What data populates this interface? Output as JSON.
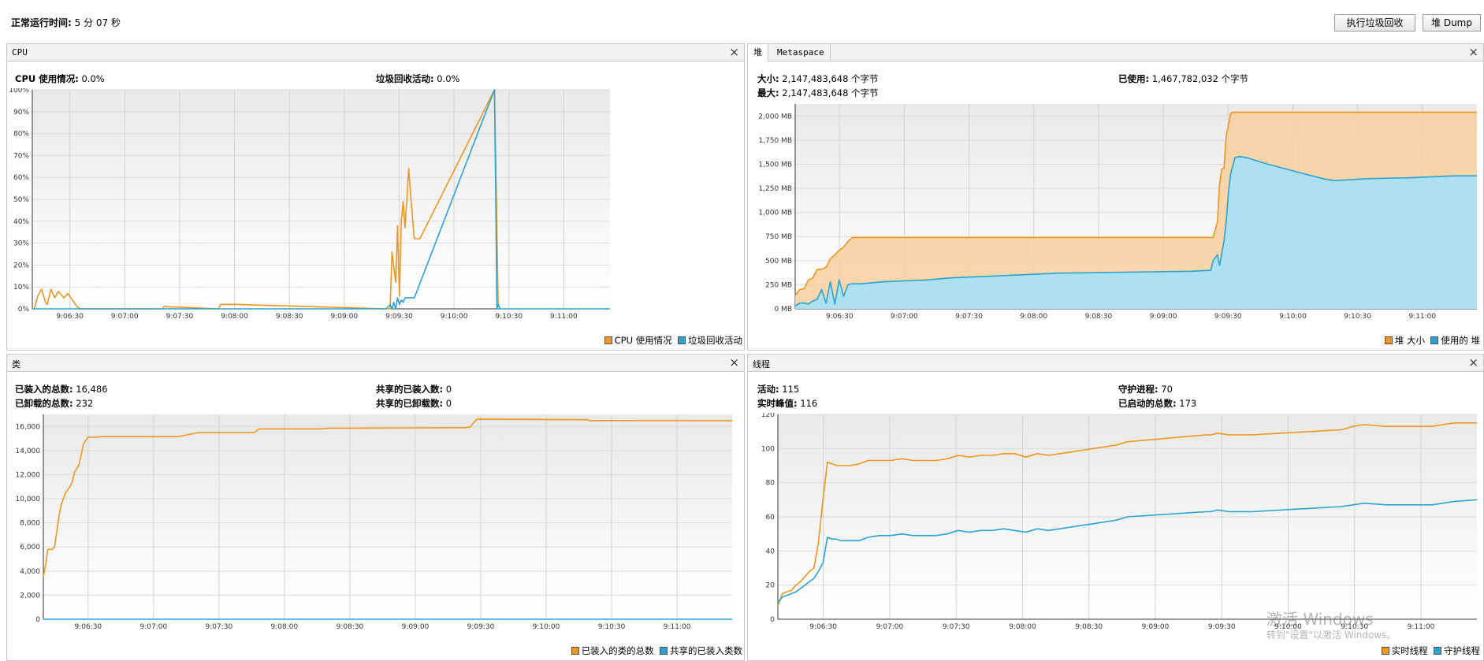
{
  "header": {
    "uptime_label": "正常运行时间:",
    "uptime_value": "5 分 07 秒",
    "gc_button": "执行垃圾回收",
    "dump_button": "堆 Dump"
  },
  "cpu": {
    "title": "CPU",
    "usage_label": "CPU 使用情况:",
    "usage_value": "0.0%",
    "gc_label": "垃圾回收活动:",
    "gc_value": "0.0%"
  },
  "heap": {
    "tab_heap": "堆",
    "tab_metaspace": "Metaspace",
    "size_label": "大小:",
    "size_value": "2,147,483,648 个字节",
    "max_label": "最大:",
    "max_value": "2,147,483,648 个字节",
    "used_label": "已使用:",
    "used_value": "1,467,782,032 个字节"
  },
  "classes": {
    "title": "类",
    "loaded_label": "已装入的总数:",
    "loaded_value": "16,486",
    "unloaded_label": "已卸载的总数:",
    "unloaded_value": "232",
    "shared_loaded_label": "共享的已装入数:",
    "shared_loaded_value": "0",
    "shared_unloaded_label": "共享的已卸载数:",
    "shared_unloaded_value": "0"
  },
  "threads": {
    "title": "线程",
    "live_label": "活动:",
    "live_value": "115",
    "daemon_label": "守护进程:",
    "daemon_value": "70",
    "peak_label": "实时峰值:",
    "peak_value": "116",
    "started_label": "已启动的总数:",
    "started_value": "173"
  },
  "watermark": {
    "line1": "激活 Windows",
    "line2": "转到\"设置\"以激活 Windows。"
  },
  "colors": {
    "orange": "#f0961e",
    "blue": "#2aa3d2",
    "grid": "#d9d9d9"
  },
  "chart_data": [
    {
      "id": "cpu",
      "type": "line",
      "x_ticks": [
        "9:06:30",
        "9:07:00",
        "9:07:30",
        "9:08:00",
        "9:08:30",
        "9:09:00",
        "9:09:30",
        "9:10:00",
        "9:10:30",
        "9:11:00"
      ],
      "y_ticks": [
        "0%",
        "10%",
        "20%",
        "30%",
        "40%",
        "50%",
        "60%",
        "70%",
        "80%",
        "90%",
        "100%"
      ],
      "ylim": [
        0,
        100
      ],
      "xlim": [
        0,
        310
      ],
      "series": [
        {
          "name": "CPU 使用情况",
          "color": "#f0961e",
          "x": [
            0,
            1,
            3,
            5,
            7,
            8,
            10,
            12,
            14,
            17,
            19,
            24,
            26,
            30,
            50,
            70,
            70.5,
            100,
            101,
            110,
            190,
            192,
            193,
            195,
            196,
            197,
            198,
            199,
            200,
            202,
            203,
            205,
            208,
            248,
            250,
            251
          ],
          "y": [
            0,
            0,
            6,
            9,
            3,
            2,
            9,
            5,
            8,
            5,
            7,
            1,
            0,
            0,
            0,
            0,
            1,
            0,
            2,
            2,
            0,
            0,
            26,
            12,
            38,
            6,
            40,
            49,
            37,
            64,
            52,
            32,
            32,
            100,
            2,
            0
          ]
        },
        {
          "name": "垃圾回收活动",
          "color": "#2aa3d2",
          "x": [
            0,
            190,
            192,
            193,
            194,
            195,
            196,
            197,
            198,
            199,
            200,
            202,
            205,
            248,
            248.7,
            249.3,
            250,
            251,
            310
          ],
          "y": [
            0,
            0,
            2,
            0,
            3,
            0,
            5,
            2,
            4,
            3,
            5,
            5,
            5,
            100,
            50,
            0,
            2,
            0,
            0
          ]
        }
      ]
    },
    {
      "id": "heap",
      "type": "area",
      "x_ticks": [
        "9:06:30",
        "9:07:00",
        "9:07:30",
        "9:08:00",
        "9:08:30",
        "9:09:00",
        "9:09:30",
        "9:10:00",
        "9:10:30",
        "9:11:00"
      ],
      "y_ticks": [
        "0 MB",
        "250 MB",
        "500 MB",
        "750 MB",
        "1,000 MB",
        "1,250 MB",
        "1,500 MB",
        "1,750 MB",
        "2,000 MB"
      ],
      "ylim": [
        0,
        2125
      ],
      "xlim": [
        0,
        310
      ],
      "series": [
        {
          "name": "堆 大小",
          "color": "#f0961e",
          "x": [
            0,
            2,
            4,
            6,
            8,
            10,
            12,
            14,
            16,
            18,
            20,
            22,
            24,
            26,
            28,
            30,
            32,
            34,
            36,
            38,
            40,
            50,
            190,
            192,
            193,
            194,
            195,
            196,
            197,
            198,
            199,
            200,
            205,
            300,
            310
          ],
          "y": [
            140,
            200,
            210,
            300,
            320,
            410,
            410,
            430,
            520,
            560,
            610,
            640,
            700,
            740,
            740,
            740,
            740,
            740,
            740,
            740,
            740,
            740,
            740,
            900,
            1300,
            1450,
            1460,
            1800,
            1900,
            2030,
            2040,
            2040,
            2040,
            2040,
            2040
          ]
        },
        {
          "name": "使用的 堆",
          "color": "#2aa3d2",
          "x": [
            0,
            2,
            4,
            6,
            8,
            10,
            12,
            14,
            16,
            18,
            20,
            22,
            24,
            26,
            28,
            30,
            40,
            50,
            60,
            70,
            80,
            90,
            100,
            120,
            150,
            180,
            189,
            190,
            192,
            193,
            195,
            196,
            197,
            198,
            200,
            202,
            205,
            215,
            240,
            245,
            260,
            280,
            300,
            310
          ],
          "y": [
            30,
            60,
            60,
            50,
            80,
            100,
            200,
            60,
            280,
            50,
            300,
            130,
            250,
            260,
            260,
            260,
            280,
            290,
            300,
            320,
            330,
            340,
            350,
            370,
            380,
            390,
            400,
            500,
            560,
            450,
            700,
            900,
            1200,
            1400,
            1570,
            1580,
            1570,
            1500,
            1350,
            1330,
            1350,
            1360,
            1380,
            1380
          ]
        }
      ]
    },
    {
      "id": "classes",
      "type": "line",
      "x_ticks": [
        "9:06:30",
        "9:07:00",
        "9:07:30",
        "9:08:00",
        "9:08:30",
        "9:09:00",
        "9:09:30",
        "9:10:00",
        "9:10:30",
        "9:11:00"
      ],
      "y_ticks": [
        "0",
        "2,000",
        "4,000",
        "6,000",
        "8,000",
        "10,000",
        "12,000",
        "14,000",
        "16,000"
      ],
      "ylim": [
        0,
        17000
      ],
      "xlim": [
        0,
        310
      ],
      "series": [
        {
          "name": "已装入的类的总数",
          "color": "#f0961e",
          "x": [
            0,
            1,
            2,
            4,
            5,
            6,
            7,
            8,
            10,
            12,
            13,
            14,
            16,
            17,
            18,
            20,
            22,
            24,
            26,
            30,
            60,
            62,
            70,
            95,
            97,
            125,
            128,
            190,
            192,
            195,
            245,
            246,
            247,
            310
          ],
          "y": [
            3500,
            4500,
            5800,
            5800,
            6000,
            7200,
            8500,
            9500,
            10500,
            11000,
            11400,
            12200,
            12800,
            13600,
            14500,
            15100,
            15100,
            15100,
            15150,
            15150,
            15150,
            15200,
            15500,
            15500,
            15800,
            15800,
            15850,
            15900,
            15950,
            16600,
            16560,
            16480,
            16490,
            16486
          ]
        },
        {
          "name": "共享的已装入类数",
          "color": "#2aa3d2",
          "x": [
            0,
            310
          ],
          "y": [
            0,
            0
          ]
        }
      ]
    },
    {
      "id": "threads",
      "type": "line",
      "x_ticks": [
        "9:06:30",
        "9:07:00",
        "9:07:30",
        "9:08:00",
        "9:08:30",
        "9:09:00",
        "9:09:30",
        "9:10:00",
        "9:10:30",
        "9:11:00"
      ],
      "y_ticks": [
        "0",
        "20",
        "40",
        "60",
        "80",
        "100",
        "120"
      ],
      "ylim": [
        0,
        120
      ],
      "xlim": [
        0,
        310
      ],
      "series": [
        {
          "name": "实时线程",
          "color": "#f0961e",
          "x": [
            0,
            2,
            4,
            6,
            8,
            10,
            12,
            14,
            16,
            18,
            20,
            22,
            24,
            26,
            28,
            32,
            36,
            40,
            45,
            50,
            55,
            60,
            70,
            75,
            80,
            85,
            90,
            95,
            100,
            105,
            110,
            115,
            120,
            125,
            130,
            135,
            140,
            145,
            150,
            155,
            190,
            192,
            195,
            200,
            210,
            250,
            255,
            260,
            270,
            280,
            290,
            295,
            300,
            310
          ],
          "y": [
            8,
            15,
            16,
            17,
            20,
            22,
            25,
            28,
            30,
            45,
            70,
            92,
            91,
            90,
            90,
            90,
            91,
            93,
            93,
            93,
            94,
            93,
            93,
            94,
            96,
            95,
            96,
            96,
            97,
            97,
            95,
            97,
            96,
            97,
            98,
            99,
            100,
            101,
            102,
            104,
            108,
            108,
            109,
            108,
            108,
            111,
            113,
            114,
            113,
            113,
            113,
            114,
            115,
            115
          ]
        },
        {
          "name": "守护线程",
          "color": "#2aa3d2",
          "x": [
            0,
            2,
            4,
            6,
            8,
            10,
            12,
            14,
            16,
            18,
            20,
            22,
            24,
            26,
            28,
            32,
            36,
            40,
            45,
            50,
            55,
            60,
            70,
            75,
            80,
            85,
            90,
            95,
            100,
            105,
            110,
            115,
            120,
            125,
            130,
            135,
            140,
            145,
            150,
            155,
            190,
            192,
            195,
            200,
            210,
            250,
            255,
            260,
            270,
            280,
            290,
            295,
            300,
            310
          ],
          "y": [
            10,
            13,
            14,
            15,
            16,
            18,
            20,
            22,
            24,
            28,
            33,
            48,
            47,
            47,
            46,
            46,
            46,
            48,
            49,
            49,
            50,
            49,
            49,
            50,
            52,
            51,
            52,
            52,
            53,
            52,
            51,
            53,
            52,
            53,
            54,
            55,
            56,
            57,
            58,
            60,
            63,
            63,
            64,
            63,
            63,
            66,
            67,
            68,
            67,
            67,
            67,
            68,
            69,
            70
          ]
        }
      ]
    }
  ]
}
